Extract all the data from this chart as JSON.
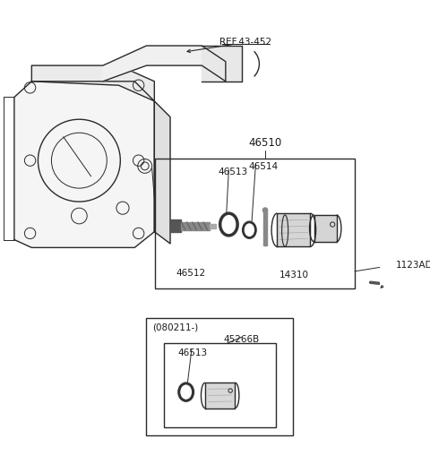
{
  "bg_color": "#ffffff",
  "ref_label": "REF.43-452",
  "box1_label": "46510",
  "label_46513": "46513",
  "label_46514": "46514",
  "label_46512": "46512",
  "label_14310": "14310",
  "label_1123AD": "1123AD",
  "box2_outer_label": "(080211-)",
  "box2_inner_label": "45266B",
  "box2_part": "46513",
  "text_color": "#1a1a1a",
  "line_color": "#2a2a2a",
  "part_fill": "#e8e8e8",
  "part_stroke": "#2a2a2a",
  "thin_line": 0.7,
  "medium_line": 1.0,
  "thick_line": 1.3
}
